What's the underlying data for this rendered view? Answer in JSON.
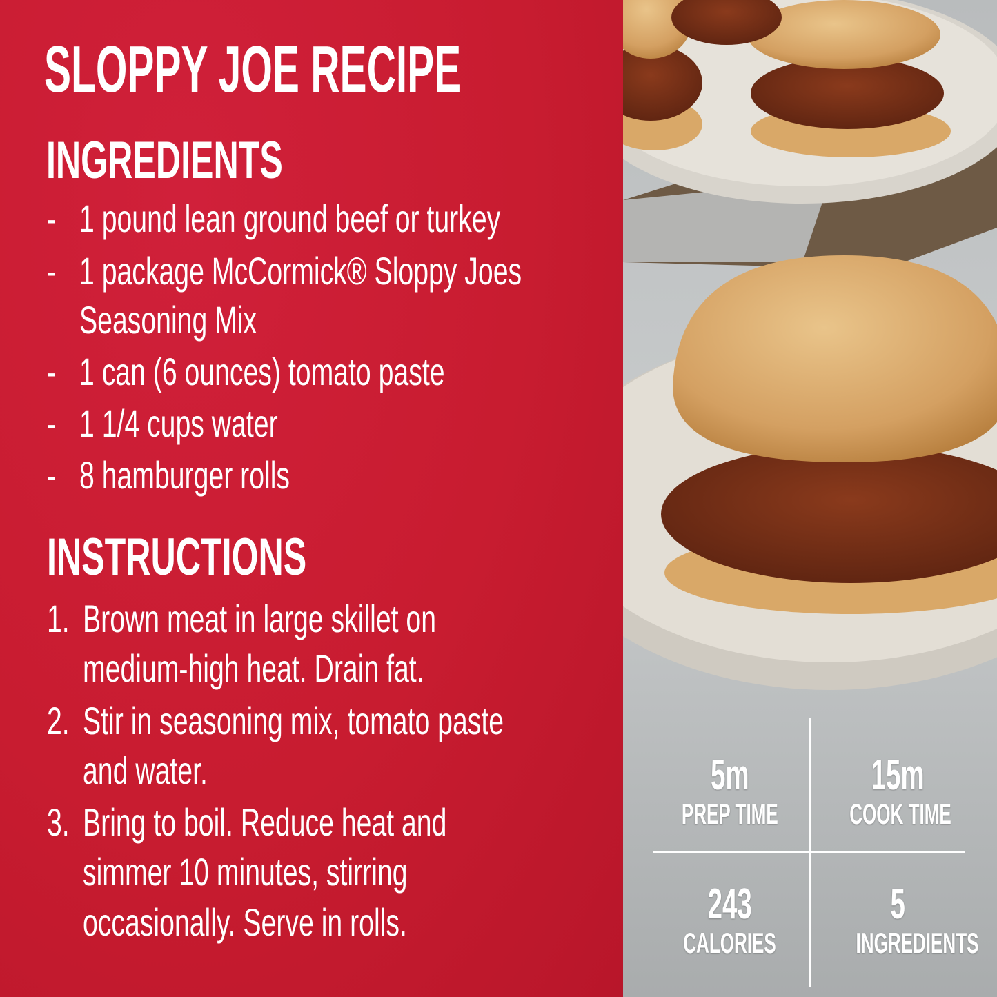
{
  "title": "SLOPPY JOE RECIPE",
  "colors": {
    "brand_red": "#c81c30",
    "text": "#ffffff"
  },
  "ingredients": {
    "heading": "INGREDIENTS",
    "bullet": "-",
    "items": [
      {
        "lines": [
          "1 pound lean ground beef or turkey"
        ]
      },
      {
        "lines": [
          "1 package McCormick® Sloppy Joes",
          "Seasoning Mix"
        ]
      },
      {
        "lines": [
          "1 can (6 ounces) tomato paste"
        ]
      },
      {
        "lines": [
          "1 1/4 cups water"
        ]
      },
      {
        "lines": [
          "8 hamburger rolls"
        ]
      }
    ]
  },
  "instructions": {
    "heading": "INSTRUCTIONS",
    "steps": [
      {
        "number": "1.",
        "lines": [
          "Brown meat in large skillet on",
          "medium-high heat. Drain fat."
        ]
      },
      {
        "number": "2.",
        "lines": [
          "Stir in seasoning mix, tomato paste",
          "and water."
        ]
      },
      {
        "number": "3.",
        "lines": [
          "Bring to boil. Reduce heat and",
          "simmer 10 minutes, stirring",
          "occasionally. Serve in rolls."
        ]
      }
    ]
  },
  "stats": [
    {
      "value": "5m",
      "label": "PREP TIME"
    },
    {
      "value": "15m",
      "label": "COOK TIME"
    },
    {
      "value": "243",
      "label": "CALORIES"
    },
    {
      "value": "5",
      "label": "INGREDIENTS"
    }
  ]
}
